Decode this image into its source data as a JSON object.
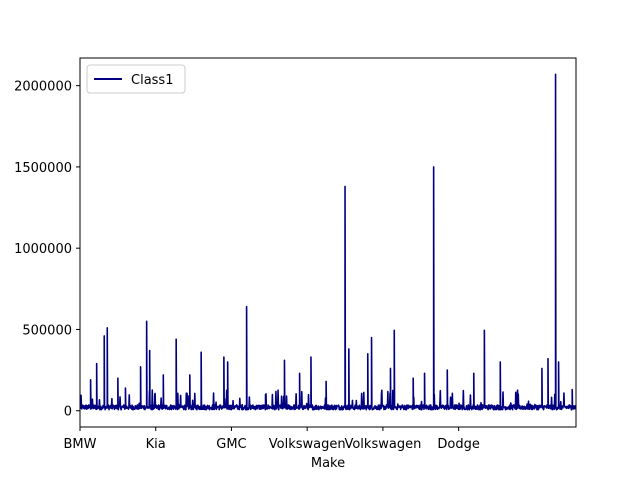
{
  "chart_data": {
    "type": "line",
    "title": "",
    "xlabel": "Make",
    "ylabel": "",
    "x_tick_labels": [
      "BMW",
      "Kia",
      "GMC",
      "Volkswagen",
      "Volkswagen",
      "Dodge"
    ],
    "x_tick_index": [
      0,
      1,
      2,
      3,
      4,
      5
    ],
    "x_range": [
      0,
      6.55
    ],
    "ylim": [
      -100000,
      2170000
    ],
    "y_ticks": [
      0,
      500000,
      1000000,
      1500000,
      2000000
    ],
    "y_tick_labels": [
      "0",
      "500000",
      "1000000",
      "1500000",
      "2000000"
    ],
    "grid": false,
    "legend_position": "top-left",
    "series": [
      {
        "name": "Class1",
        "color": "#000080",
        "baseline": 20000,
        "peaks": [
          {
            "x": 0.14,
            "y": 190000
          },
          {
            "x": 0.22,
            "y": 290000
          },
          {
            "x": 0.32,
            "y": 460000
          },
          {
            "x": 0.36,
            "y": 510000
          },
          {
            "x": 0.5,
            "y": 200000
          },
          {
            "x": 0.6,
            "y": 140000
          },
          {
            "x": 0.8,
            "y": 270000
          },
          {
            "x": 0.88,
            "y": 550000
          },
          {
            "x": 0.92,
            "y": 370000
          },
          {
            "x": 1.1,
            "y": 220000
          },
          {
            "x": 1.27,
            "y": 440000
          },
          {
            "x": 1.45,
            "y": 220000
          },
          {
            "x": 1.6,
            "y": 360000
          },
          {
            "x": 1.9,
            "y": 330000
          },
          {
            "x": 1.95,
            "y": 300000
          },
          {
            "x": 2.2,
            "y": 640000
          },
          {
            "x": 2.45,
            "y": 100000
          },
          {
            "x": 2.7,
            "y": 310000
          },
          {
            "x": 2.9,
            "y": 230000
          },
          {
            "x": 3.05,
            "y": 330000
          },
          {
            "x": 3.25,
            "y": 180000
          },
          {
            "x": 3.5,
            "y": 1380000
          },
          {
            "x": 3.55,
            "y": 380000
          },
          {
            "x": 3.8,
            "y": 350000
          },
          {
            "x": 3.85,
            "y": 450000
          },
          {
            "x": 4.1,
            "y": 260000
          },
          {
            "x": 4.15,
            "y": 495000
          },
          {
            "x": 4.4,
            "y": 200000
          },
          {
            "x": 4.55,
            "y": 230000
          },
          {
            "x": 4.67,
            "y": 1500000
          },
          {
            "x": 4.85,
            "y": 250000
          },
          {
            "x": 5.2,
            "y": 230000
          },
          {
            "x": 5.34,
            "y": 495000
          },
          {
            "x": 5.55,
            "y": 300000
          },
          {
            "x": 6.1,
            "y": 260000
          },
          {
            "x": 6.18,
            "y": 320000
          },
          {
            "x": 6.28,
            "y": 2070000
          },
          {
            "x": 6.32,
            "y": 300000
          },
          {
            "x": 6.5,
            "y": 130000
          }
        ]
      }
    ]
  }
}
